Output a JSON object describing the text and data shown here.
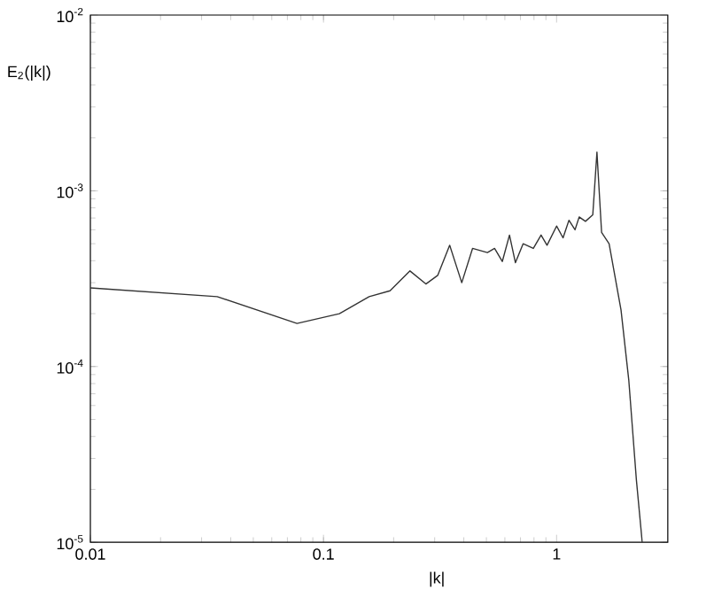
{
  "chart_data": {
    "type": "line",
    "xlabel": "|k|",
    "ylabel": "E$_{2}$(|k|)",
    "log": "xy",
    "xlim": [
      0.01,
      3
    ],
    "ylim": [
      1e-05,
      0.01
    ],
    "xticks": [
      {
        "value": 0.01,
        "label": "0.01"
      },
      {
        "value": 0.1,
        "label": "0.1"
      },
      {
        "value": 1,
        "label": "1"
      }
    ],
    "yticks": [
      {
        "value": 1e-05,
        "label": "10$^{-5}$"
      },
      {
        "value": 0.0001,
        "label": "10$^{-4}$"
      },
      {
        "value": 0.001,
        "label": "10$^{-3}$"
      },
      {
        "value": 0.01,
        "label": "10$^{-2}$"
      }
    ],
    "grid": false,
    "marker": "none",
    "line_style": "solid",
    "series": [
      {
        "color": "#333333",
        "x": [
          0.01,
          0.035,
          0.077,
          0.117,
          0.157,
          0.193,
          0.235,
          0.275,
          0.309,
          0.348,
          0.392,
          0.436,
          0.505,
          0.542,
          0.585,
          0.628,
          0.666,
          0.719,
          0.795,
          0.858,
          0.91,
          1.0,
          1.066,
          1.13,
          1.2,
          1.25,
          1.33,
          1.43,
          1.49,
          1.56,
          1.68,
          1.89,
          2.04,
          2.2,
          2.33
        ],
        "values": [
          0.00028,
          0.00025,
          0.000176,
          0.0002,
          0.00025,
          0.00027,
          0.00035,
          0.000295,
          0.00033,
          0.00049,
          0.0003,
          0.00047,
          0.000445,
          0.00047,
          0.000396,
          0.00056,
          0.00039,
          0.0005,
          0.00047,
          0.00056,
          0.00049,
          0.00063,
          0.00054,
          0.00068,
          0.0006,
          0.00071,
          0.00067,
          0.00073,
          0.00166,
          0.00058,
          0.0005,
          0.00021,
          8.4e-05,
          2.26e-05,
          1e-05
        ]
      }
    ]
  }
}
